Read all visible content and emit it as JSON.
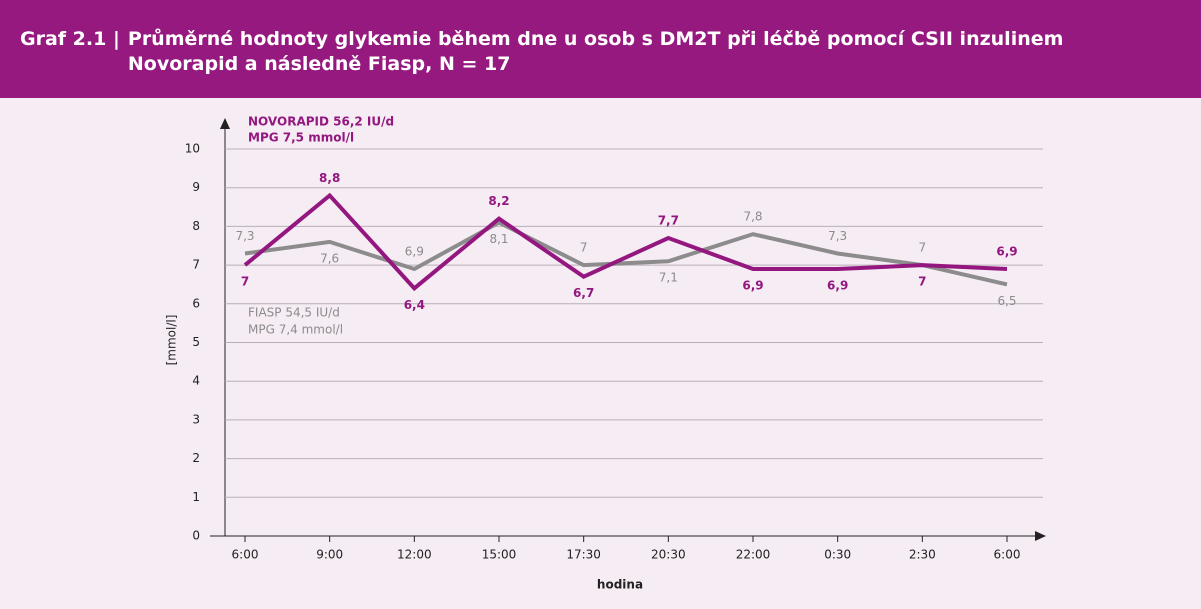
{
  "chart_data": {
    "type": "line",
    "figure_label": "Graf 2.1 |",
    "title": "Průměrné hodnoty glykemie během dne u osob s DM2T při léčbě pomocí CSII inzulinem Novorapid a následně Fiasp, N = 17",
    "x_label": "hodina",
    "y_label": "[mmol/l]",
    "categories": [
      "6:00",
      "9:00",
      "12:00",
      "15:00",
      "17:30",
      "20:30",
      "22:00",
      "0:30",
      "2:30",
      "6:00"
    ],
    "series": [
      {
        "name": "NOVORAPID 56,2 IU/d",
        "note": "MPG 7,5 mmol/l",
        "color": "#93177f",
        "values": [
          7,
          8.8,
          6.4,
          8.2,
          6.7,
          7.7,
          6.9,
          6.9,
          7,
          6.9
        ],
        "value_labels": [
          "7",
          "8,8",
          "6,4",
          "8,2",
          "6,7",
          "7,7",
          "6,9",
          "6,9",
          "7",
          "6,9"
        ]
      },
      {
        "name": "FIASP 54,5 IU/d",
        "note": "MPG 7,4 mmol/l",
        "color": "#8c8c8c",
        "values": [
          7.3,
          7.6,
          6.9,
          8.1,
          7,
          7.1,
          7.8,
          7.3,
          7,
          6.5
        ],
        "value_labels": [
          "7,3",
          "7,6",
          "6,9",
          "8,1",
          "7",
          "7,1",
          "7,8",
          "7,3",
          "7",
          "6,5"
        ]
      }
    ],
    "ylim": [
      0,
      10
    ],
    "yticks": [
      0,
      1,
      2,
      3,
      4,
      5,
      6,
      7,
      8,
      9,
      10
    ],
    "grid": true
  }
}
